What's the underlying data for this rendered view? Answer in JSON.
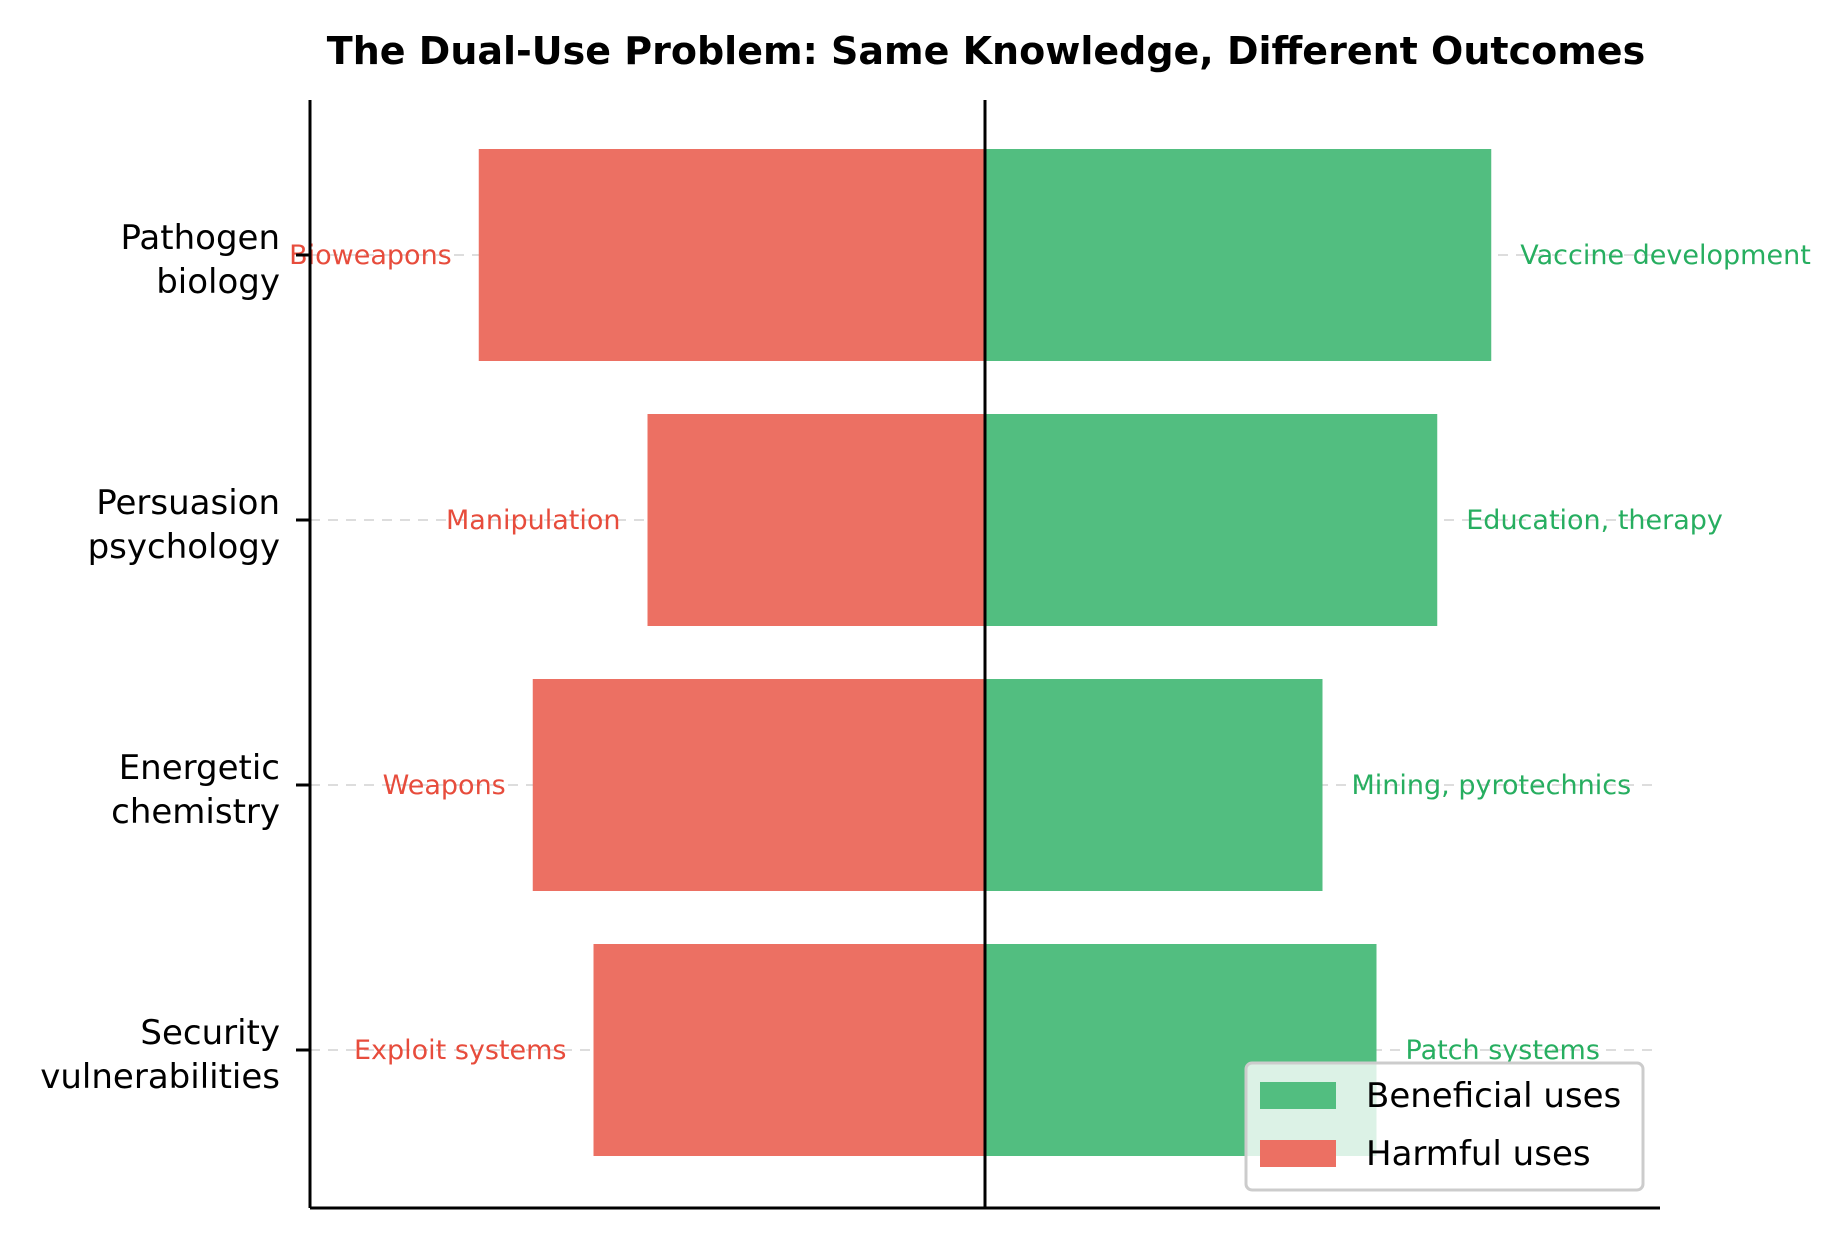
{
  "chart_data": {
    "type": "bar",
    "orientation": "horizontal-diverging",
    "title": "The Dual-Use Problem: Same Knowledge, Different Outcomes",
    "xlabel": "",
    "ylabel": "",
    "xlim": [
      -1.0,
      1.0
    ],
    "grid": "horizontal dashed lines at categories",
    "legend_position": "lower-right",
    "categories": [
      "Pathogen biology",
      "Persuasion psychology",
      "Energetic chemistry",
      "Security vulnerabilities"
    ],
    "category_lines": [
      [
        "Pathogen",
        "biology"
      ],
      [
        "Persuasion",
        "psychology"
      ],
      [
        "Energetic",
        "chemistry"
      ],
      [
        "Security",
        "vulnerabilities"
      ]
    ],
    "series": [
      {
        "name": "Beneficial uses",
        "color": "#52be80",
        "values": [
          0.75,
          0.67,
          0.5,
          0.58
        ],
        "labels": [
          "Vaccine development",
          "Education, therapy",
          "Mining, pyrotechnics",
          "Patch systems"
        ]
      },
      {
        "name": "Harmful uses",
        "color": "#ec7063",
        "values": [
          -0.75,
          -0.5,
          -0.67,
          -0.58
        ],
        "labels": [
          "Bioweapons",
          "Manipulation",
          "Weapons",
          "Exploit systems"
        ]
      }
    ],
    "label_colors": {
      "beneficial": "#27ae60",
      "harmful": "#e74c3c"
    }
  }
}
